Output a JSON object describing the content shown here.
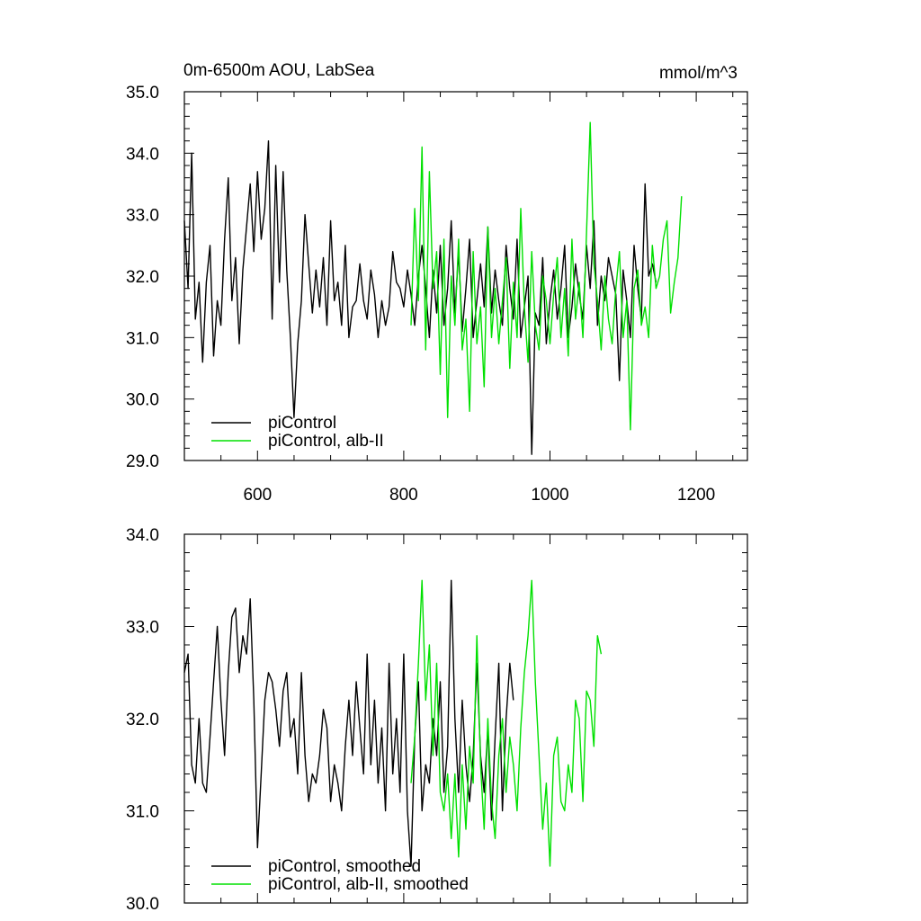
{
  "colors": {
    "control": "#000000",
    "alb": "#00e000",
    "axis": "#000000"
  },
  "chart_data": [
    {
      "type": "line",
      "title": "0m-6500m AOU, LabSea",
      "units": "mmol/m^3",
      "xlim": [
        500,
        1270
      ],
      "ylim": [
        29.0,
        35.0
      ],
      "xticks": [
        600,
        800,
        1000,
        1200
      ],
      "xtick_labels": [
        "600",
        "800",
        "1000",
        "1200"
      ],
      "yticks": [
        29.0,
        30.0,
        31.0,
        32.0,
        33.0,
        34.0,
        35.0
      ],
      "ytick_labels": [
        "29.0",
        "30.0",
        "31.0",
        "32.0",
        "33.0",
        "34.0",
        "35.0"
      ],
      "legend_position": "bottom-left",
      "series": [
        {
          "name": "piControl",
          "color": "#000000",
          "x_start": 500,
          "x_step": 5,
          "values": [
            32.9,
            31.8,
            34.0,
            31.3,
            31.9,
            30.6,
            31.9,
            32.5,
            30.7,
            31.6,
            31.2,
            32.6,
            33.6,
            31.6,
            32.3,
            30.9,
            32.1,
            32.8,
            33.5,
            32.4,
            33.7,
            32.6,
            33.1,
            34.2,
            31.3,
            33.8,
            31.9,
            33.7,
            32.1,
            31.0,
            29.7,
            30.9,
            31.6,
            33.0,
            32.2,
            31.4,
            32.1,
            31.5,
            32.3,
            31.2,
            32.9,
            31.6,
            31.9,
            31.2,
            32.5,
            31.0,
            31.5,
            31.6,
            32.2,
            31.6,
            31.3,
            32.1,
            31.7,
            31.0,
            31.6,
            31.2,
            31.5,
            32.4,
            31.9,
            31.8,
            31.5,
            32.1,
            31.7,
            31.2,
            32.0,
            32.5,
            31.8,
            31.0,
            32.1,
            31.4,
            32.5,
            31.2,
            31.8,
            32.9,
            31.4,
            32.4,
            31.1,
            31.8,
            32.6,
            31.0,
            31.6,
            32.2,
            31.5,
            32.8,
            31.4,
            32.1,
            31.6,
            31.2,
            32.5,
            31.8,
            31.3,
            32.6,
            31.0,
            31.5,
            32.0,
            29.1,
            31.4,
            31.2,
            32.3,
            30.9,
            31.6,
            32.1,
            31.3,
            31.8,
            32.5,
            31.0,
            31.5,
            32.2,
            31.7,
            31.3,
            32.5,
            31.8,
            32.9,
            31.2,
            32.0,
            31.6,
            32.3,
            32.0,
            31.7,
            30.3,
            32.1,
            31.6,
            31.0,
            32.5,
            31.8,
            31.3,
            33.5,
            32.0,
            32.2,
            31.9
          ]
        },
        {
          "name": "piControl, alb-II",
          "color": "#00e000",
          "x_start": 810,
          "x_step": 5,
          "values": [
            31.2,
            33.1,
            31.6,
            34.1,
            30.8,
            33.7,
            31.8,
            32.4,
            30.4,
            32.6,
            29.7,
            32.0,
            31.2,
            32.6,
            30.8,
            31.3,
            29.8,
            32.4,
            30.9,
            31.5,
            30.2,
            32.8,
            31.0,
            31.8,
            30.9,
            31.6,
            32.3,
            30.5,
            31.9,
            31.0,
            33.1,
            31.5,
            30.6,
            32.4,
            31.2,
            30.8,
            32.0,
            31.6,
            30.9,
            31.7,
            32.3,
            31.0,
            31.8,
            30.7,
            32.6,
            31.3,
            31.9,
            31.0,
            32.7,
            34.5,
            32.2,
            31.6,
            30.8,
            32.0,
            31.3,
            30.9,
            31.8,
            32.4,
            31.0,
            31.6,
            29.5,
            31.8,
            32.1,
            31.2,
            31.5,
            31.0,
            32.5,
            31.8,
            32.0,
            32.6,
            32.9,
            31.4,
            31.9,
            32.3,
            33.3
          ]
        }
      ]
    },
    {
      "type": "line",
      "xlim": [
        500,
        1270
      ],
      "ylim": [
        30.0,
        34.0
      ],
      "xticks": [
        600,
        800,
        1000,
        1200
      ],
      "yticks": [
        30.0,
        31.0,
        32.0,
        33.0,
        34.0
      ],
      "ytick_labels": [
        "30.0",
        "31.0",
        "32.0",
        "33.0",
        "34.0"
      ],
      "legend_position": "bottom-left",
      "series": [
        {
          "name": "piControl, smoothed",
          "color": "#000000",
          "x_start": 500,
          "x_step": 5,
          "values": [
            32.5,
            32.7,
            31.5,
            31.3,
            32.0,
            31.3,
            31.2,
            31.8,
            32.4,
            33.0,
            32.2,
            31.6,
            32.5,
            33.1,
            33.2,
            32.5,
            32.9,
            32.7,
            33.3,
            32.2,
            30.6,
            31.4,
            32.2,
            32.5,
            32.4,
            32.1,
            31.7,
            32.3,
            32.5,
            31.8,
            32.0,
            31.4,
            32.5,
            31.6,
            31.1,
            31.4,
            31.3,
            31.6,
            32.1,
            31.9,
            31.1,
            31.5,
            31.3,
            31.0,
            31.7,
            32.2,
            31.6,
            32.4,
            31.9,
            31.4,
            32.7,
            31.5,
            32.2,
            31.3,
            31.9,
            31.0,
            32.6,
            31.4,
            32.0,
            31.2,
            32.7,
            31.0,
            30.4,
            31.8,
            32.4,
            31.0,
            31.5,
            31.3,
            32.0,
            31.6,
            32.4,
            31.2,
            31.7,
            33.5,
            32.0,
            31.2,
            32.2,
            31.5,
            31.1,
            31.6,
            32.6,
            31.6,
            31.2,
            31.9,
            30.9,
            31.8,
            32.6,
            31.0,
            32.0,
            32.6,
            32.2
          ]
        },
        {
          "name": "piControl, alb-II, smoothed",
          "color": "#00e000",
          "x_start": 810,
          "x_step": 5,
          "values": [
            31.3,
            31.8,
            32.6,
            33.5,
            32.2,
            32.8,
            31.6,
            32.6,
            31.2,
            31.0,
            31.4,
            30.7,
            31.4,
            30.5,
            31.5,
            30.8,
            31.7,
            31.3,
            32.9,
            31.5,
            30.8,
            32.0,
            31.1,
            30.7,
            31.6,
            32.0,
            31.2,
            31.8,
            31.5,
            31.0,
            31.9,
            32.5,
            32.9,
            33.5,
            32.4,
            31.6,
            30.8,
            31.3,
            30.4,
            31.6,
            31.8,
            31.1,
            31.0,
            31.5,
            31.2,
            32.2,
            32.0,
            31.1,
            32.3,
            32.2,
            31.7,
            32.9,
            32.7
          ]
        }
      ]
    }
  ]
}
